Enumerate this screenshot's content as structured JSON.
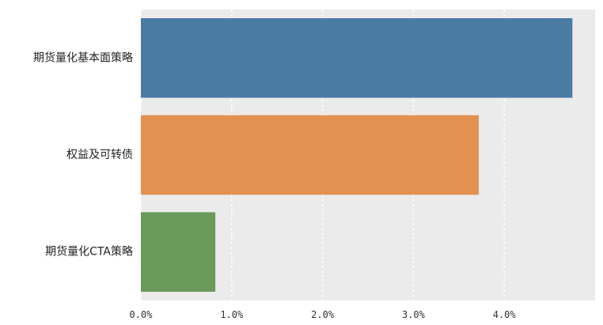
{
  "chart_data": {
    "type": "bar",
    "orientation": "horizontal",
    "categories": [
      "期货量化基本面策略",
      "权益及可转债",
      "期货量化CTA策略"
    ],
    "values": [
      4.75,
      3.72,
      0.82
    ],
    "colors": [
      "#4a7ba3",
      "#e39150",
      "#6a9a5a"
    ],
    "xlim": [
      0,
      5.0
    ],
    "xticks": [
      "0.0%",
      "1.0%",
      "2.0%",
      "3.0%",
      "4.0%"
    ],
    "xtick_values": [
      0,
      1,
      2,
      3,
      4
    ],
    "grid": true,
    "background": "#ebebeb"
  }
}
